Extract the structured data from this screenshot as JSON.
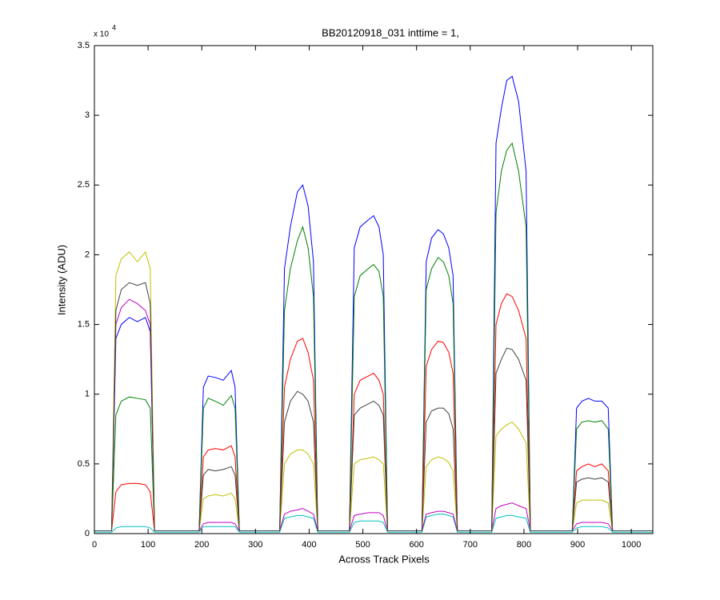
{
  "chart_data": {
    "type": "line",
    "title": "BB20120918_031 inttime = 1,",
    "x_label": "Across Track Pixels",
    "y_label": "Intensity (ADU)",
    "y_multiplier": "x 10",
    "y_multiplier_exponent": "4",
    "xlim": [
      0,
      1040
    ],
    "ylim": [
      0,
      3.5
    ],
    "xticks": [
      0,
      100,
      200,
      300,
      400,
      500,
      600,
      700,
      800,
      900,
      1000
    ],
    "yticks": [
      0,
      0.5,
      1,
      1.5,
      2,
      2.5,
      3,
      3.5
    ],
    "x": [
      0,
      32,
      40,
      50,
      65,
      80,
      95,
      104,
      112,
      195,
      203,
      212,
      225,
      240,
      255,
      262,
      270,
      345,
      354,
      365,
      378,
      388,
      398,
      408,
      416,
      475,
      484,
      495,
      510,
      520,
      530,
      538,
      546,
      610,
      618,
      628,
      640,
      650,
      660,
      668,
      676,
      740,
      748,
      758,
      768,
      778,
      790,
      804,
      812,
      890,
      898,
      908,
      920,
      932,
      945,
      957,
      965,
      1040
    ],
    "series": [
      {
        "color": "#0000ff",
        "values": [
          0.02,
          0.02,
          1.4,
          1.5,
          1.55,
          1.52,
          1.55,
          1.45,
          0.02,
          0.02,
          1.05,
          1.13,
          1.12,
          1.1,
          1.17,
          1.05,
          0.02,
          0.02,
          1.9,
          2.2,
          2.45,
          2.5,
          2.35,
          1.95,
          0.02,
          0.02,
          2.05,
          2.2,
          2.25,
          2.28,
          2.2,
          2.0,
          0.02,
          0.02,
          1.95,
          2.12,
          2.18,
          2.15,
          2.05,
          1.85,
          0.02,
          0.02,
          2.8,
          3.05,
          3.25,
          3.28,
          3.1,
          2.6,
          0.02,
          0.02,
          0.9,
          0.95,
          0.97,
          0.95,
          0.95,
          0.9,
          0.02,
          0.02
        ]
      },
      {
        "color": "#008000",
        "values": [
          0.02,
          0.02,
          0.85,
          0.95,
          0.98,
          0.97,
          0.96,
          0.9,
          0.02,
          0.02,
          0.9,
          0.97,
          0.95,
          0.92,
          0.99,
          0.9,
          0.02,
          0.02,
          1.6,
          1.9,
          2.1,
          2.2,
          2.05,
          1.7,
          0.02,
          0.02,
          1.7,
          1.85,
          1.9,
          1.93,
          1.88,
          1.7,
          0.02,
          0.02,
          1.75,
          1.9,
          1.98,
          1.95,
          1.85,
          1.65,
          0.02,
          0.02,
          2.3,
          2.6,
          2.75,
          2.8,
          2.6,
          2.2,
          0.02,
          0.02,
          0.75,
          0.8,
          0.81,
          0.8,
          0.81,
          0.75,
          0.02,
          0.02
        ]
      },
      {
        "color": "#ff0000",
        "values": [
          0.02,
          0.02,
          0.3,
          0.35,
          0.36,
          0.36,
          0.35,
          0.3,
          0.02,
          0.02,
          0.55,
          0.6,
          0.61,
          0.6,
          0.63,
          0.55,
          0.02,
          0.02,
          1.05,
          1.25,
          1.38,
          1.4,
          1.3,
          1.1,
          0.02,
          0.02,
          1.0,
          1.1,
          1.13,
          1.15,
          1.1,
          1.0,
          0.02,
          0.02,
          1.2,
          1.32,
          1.38,
          1.37,
          1.3,
          1.15,
          0.02,
          0.02,
          1.5,
          1.65,
          1.72,
          1.7,
          1.6,
          1.4,
          0.02,
          0.02,
          0.45,
          0.48,
          0.5,
          0.48,
          0.5,
          0.45,
          0.02,
          0.02
        ]
      },
      {
        "color": "#00bfbf",
        "values": [
          0.01,
          0.01,
          0.04,
          0.05,
          0.05,
          0.05,
          0.05,
          0.04,
          0.01,
          0.01,
          0.05,
          0.05,
          0.05,
          0.05,
          0.05,
          0.05,
          0.01,
          0.01,
          0.11,
          0.12,
          0.13,
          0.13,
          0.12,
          0.11,
          0.01,
          0.01,
          0.08,
          0.09,
          0.09,
          0.09,
          0.09,
          0.08,
          0.01,
          0.01,
          0.12,
          0.13,
          0.14,
          0.14,
          0.13,
          0.12,
          0.01,
          0.01,
          0.11,
          0.12,
          0.13,
          0.13,
          0.12,
          0.11,
          0.01,
          0.01,
          0.04,
          0.05,
          0.05,
          0.05,
          0.05,
          0.04,
          0.01,
          0.01
        ]
      },
      {
        "color": "#bf00bf",
        "values": [
          0.02,
          0.02,
          1.5,
          1.62,
          1.68,
          1.65,
          1.6,
          1.5,
          0.02,
          0.02,
          0.07,
          0.08,
          0.08,
          0.08,
          0.08,
          0.07,
          0.02,
          0.02,
          0.14,
          0.16,
          0.17,
          0.18,
          0.16,
          0.14,
          0.02,
          0.02,
          0.13,
          0.14,
          0.15,
          0.15,
          0.15,
          0.13,
          0.02,
          0.02,
          0.14,
          0.15,
          0.16,
          0.16,
          0.15,
          0.14,
          0.02,
          0.02,
          0.18,
          0.2,
          0.21,
          0.22,
          0.2,
          0.18,
          0.02,
          0.02,
          0.07,
          0.08,
          0.08,
          0.08,
          0.08,
          0.07,
          0.02,
          0.02
        ]
      },
      {
        "color": "#bfbf00",
        "values": [
          0.02,
          0.02,
          1.85,
          1.97,
          2.02,
          1.95,
          2.02,
          1.9,
          0.02,
          0.02,
          0.25,
          0.27,
          0.28,
          0.27,
          0.29,
          0.25,
          0.02,
          0.02,
          0.5,
          0.57,
          0.6,
          0.6,
          0.57,
          0.5,
          0.02,
          0.02,
          0.5,
          0.53,
          0.54,
          0.55,
          0.53,
          0.5,
          0.02,
          0.02,
          0.48,
          0.53,
          0.55,
          0.54,
          0.51,
          0.45,
          0.02,
          0.02,
          0.7,
          0.75,
          0.78,
          0.8,
          0.75,
          0.65,
          0.02,
          0.02,
          0.22,
          0.24,
          0.24,
          0.24,
          0.24,
          0.22,
          0.02,
          0.02
        ]
      },
      {
        "color": "#404040",
        "values": [
          0.02,
          0.02,
          1.6,
          1.75,
          1.8,
          1.78,
          1.8,
          1.65,
          0.02,
          0.02,
          0.42,
          0.46,
          0.45,
          0.46,
          0.48,
          0.42,
          0.02,
          0.02,
          0.8,
          0.95,
          1.02,
          1.0,
          0.95,
          0.8,
          0.02,
          0.02,
          0.85,
          0.9,
          0.93,
          0.95,
          0.92,
          0.85,
          0.02,
          0.02,
          0.8,
          0.88,
          0.9,
          0.9,
          0.86,
          0.75,
          0.02,
          0.02,
          1.15,
          1.25,
          1.33,
          1.32,
          1.25,
          1.1,
          0.02,
          0.02,
          0.37,
          0.39,
          0.4,
          0.39,
          0.4,
          0.37,
          0.02,
          0.02
        ]
      }
    ]
  }
}
